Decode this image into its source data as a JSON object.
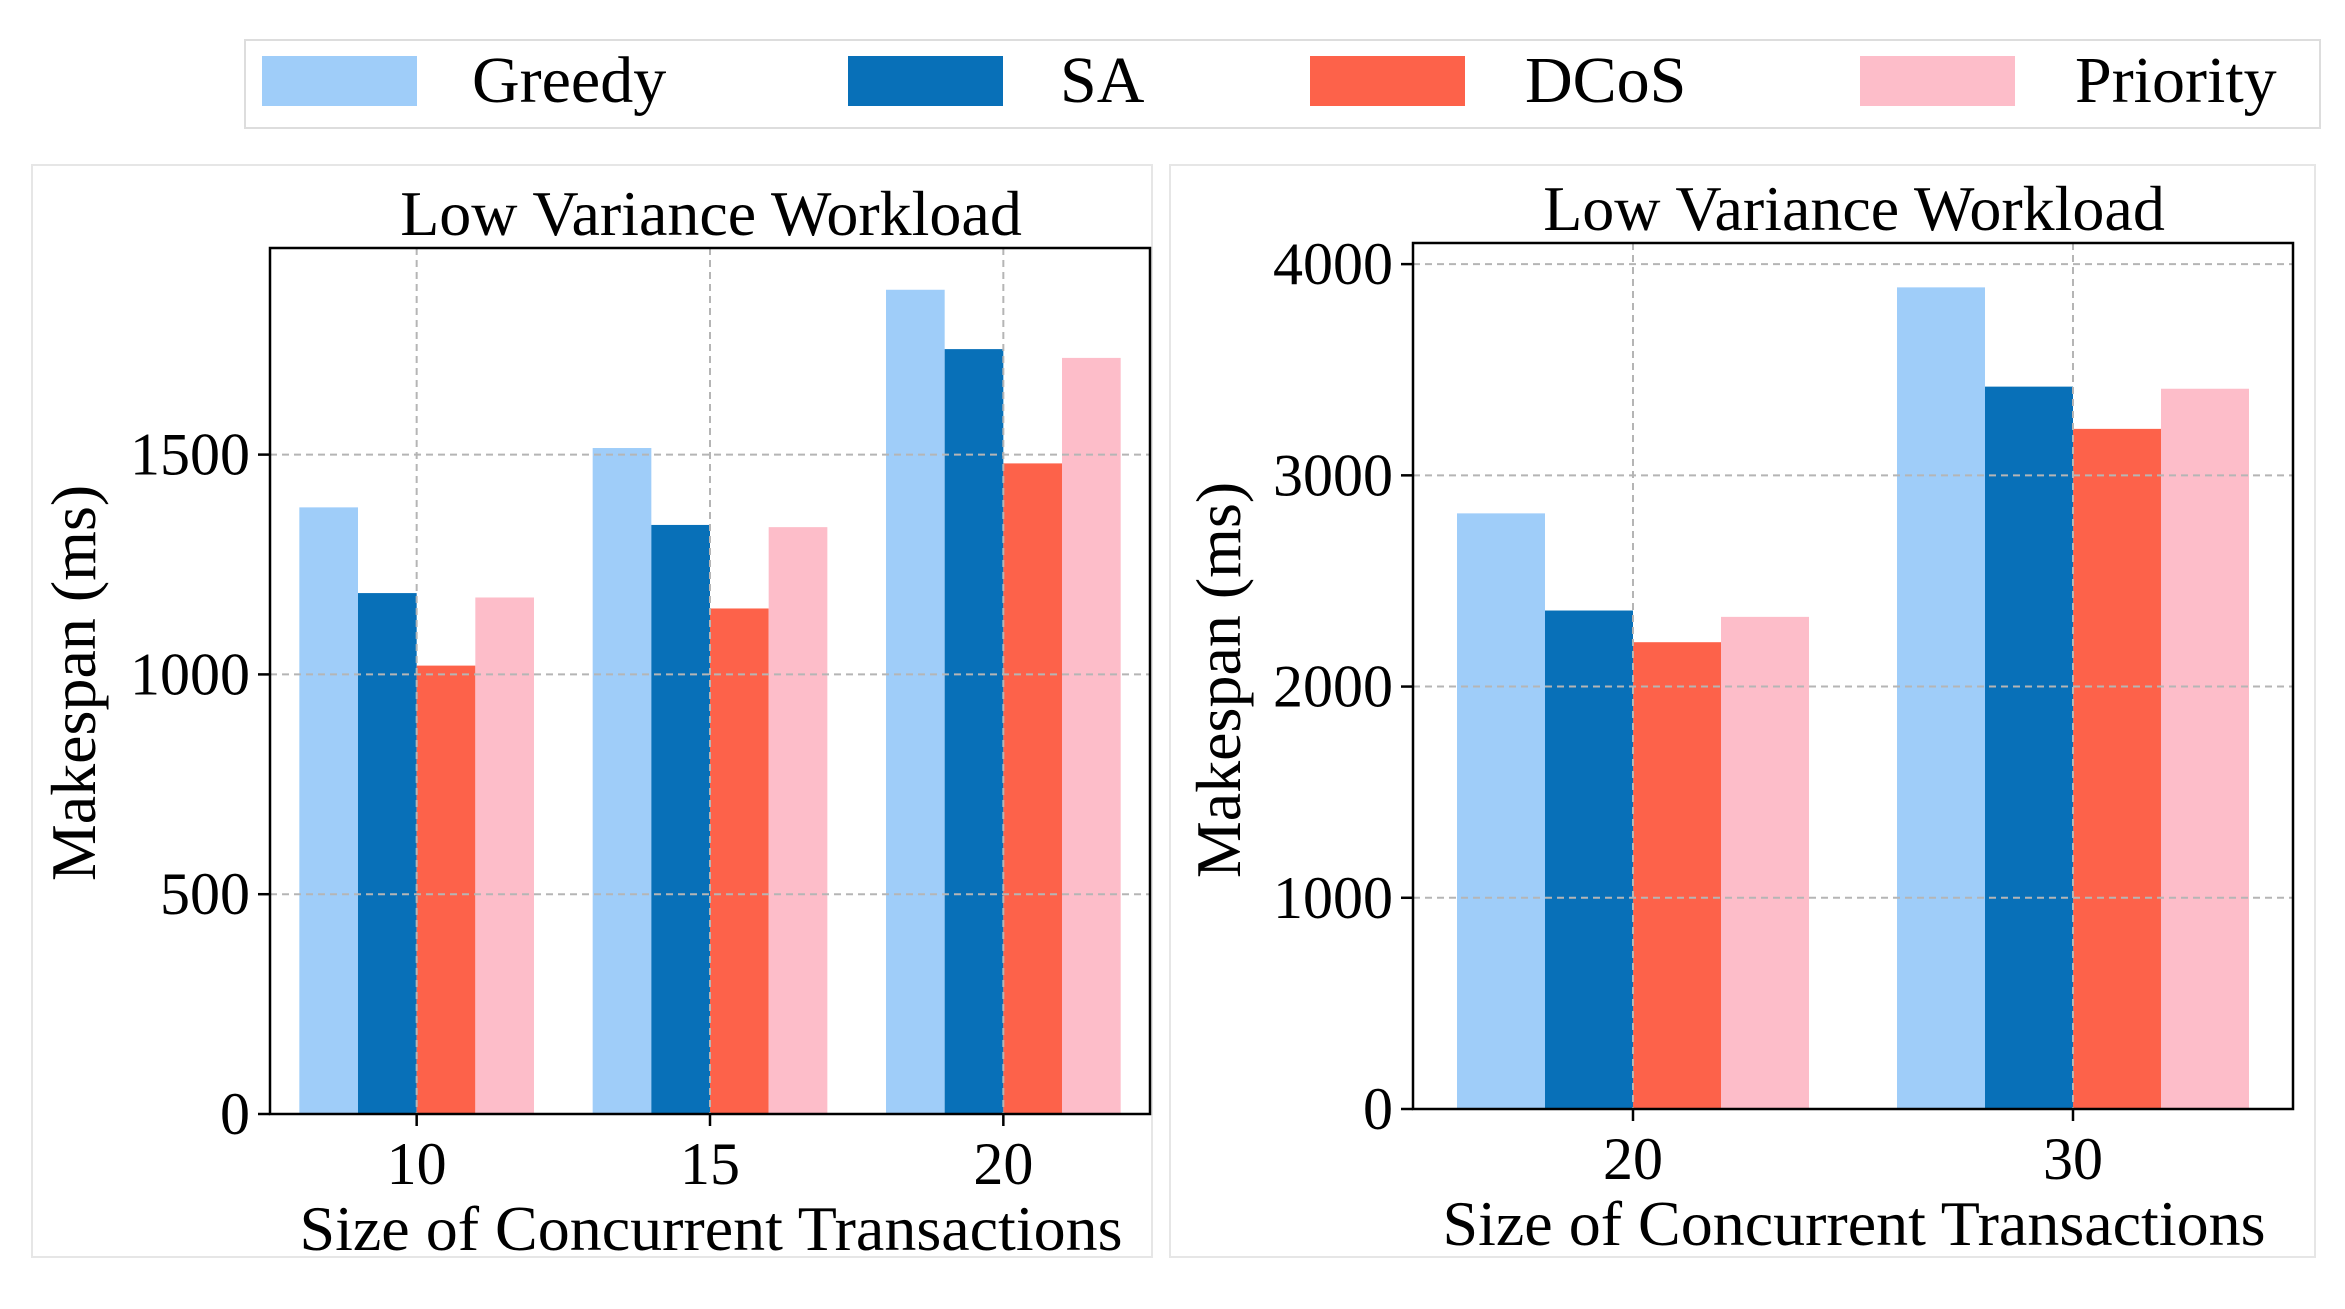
{
  "legend": {
    "placement": "top-center",
    "entries": [
      {
        "label": "Greedy",
        "color": "#9fcdf9"
      },
      {
        "label": "SA",
        "color": "#0870b8"
      },
      {
        "label": "DCoS",
        "color": "#fd624a"
      },
      {
        "label": "Priority",
        "color": "#fdbdc9"
      }
    ]
  },
  "chart_data": [
    {
      "type": "bar",
      "title": "Low Variance Workload",
      "xlabel": "Size of Concurrent Transactions",
      "ylabel": "Makespan (ms)",
      "categories": [
        "10",
        "15",
        "20"
      ],
      "ylim": [
        0,
        1970
      ],
      "yticks": [
        0,
        500,
        1000,
        1500
      ],
      "grid": true,
      "series": [
        {
          "name": "Greedy",
          "color": "#9fcdf9",
          "values": [
            1380,
            1515,
            1875
          ]
        },
        {
          "name": "SA",
          "color": "#0870b8",
          "values": [
            1185,
            1340,
            1740
          ]
        },
        {
          "name": "DCoS",
          "color": "#fd624a",
          "values": [
            1020,
            1150,
            1480
          ]
        },
        {
          "name": "Priority",
          "color": "#fdbdc9",
          "values": [
            1175,
            1335,
            1720
          ]
        }
      ]
    },
    {
      "type": "bar",
      "title": "Low Variance Workload",
      "xlabel": "Size of Concurrent Transactions",
      "ylabel": "Makespan (ms)",
      "categories": [
        "20",
        "30"
      ],
      "ylim": [
        0,
        4100
      ],
      "yticks": [
        0,
        1000,
        2000,
        3000,
        4000
      ],
      "grid": true,
      "series": [
        {
          "name": "Greedy",
          "color": "#9fcdf9",
          "values": [
            2820,
            3890
          ]
        },
        {
          "name": "SA",
          "color": "#0870b8",
          "values": [
            2360,
            3420
          ]
        },
        {
          "name": "DCoS",
          "color": "#fd624a",
          "values": [
            2210,
            3220
          ]
        },
        {
          "name": "Priority",
          "color": "#fdbdc9",
          "values": [
            2330,
            3410
          ]
        }
      ]
    }
  ]
}
